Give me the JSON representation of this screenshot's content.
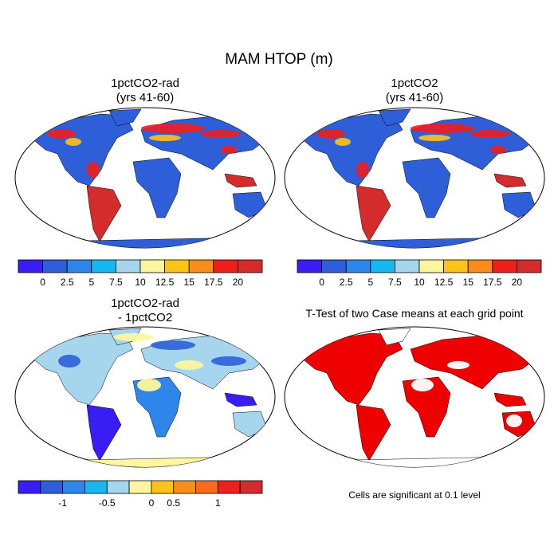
{
  "figure": {
    "title": "MAM HTOP (m)"
  },
  "panels": {
    "p1": {
      "title_line1": "1pctCO2-rad",
      "title_line2": "(yrs 41-60)"
    },
    "p2": {
      "title_line1": "1pctCO2",
      "title_line2": "(yrs 41-60)"
    },
    "p3": {
      "title_line1": "1pctCO2-rad",
      "title_line2": "- 1pctCO2"
    },
    "p4": {
      "title_line1": "T-Test of two Case means at each grid point",
      "note": "Cells are significant at 0.1 level"
    }
  },
  "colorbars": {
    "abs": {
      "labels": [
        "0",
        "2.5",
        "5",
        "7.5",
        "10",
        "12.5",
        "15",
        "17.5",
        "20"
      ],
      "colors": [
        "#3a1cf5",
        "#2f5fd8",
        "#2f86ea",
        "#17b7f0",
        "#a6d5ee",
        "#fdf6a0",
        "#fdc319",
        "#f98c1a",
        "#ef1f1c",
        "#d42c2c"
      ]
    },
    "diff": {
      "labels": [
        "-1",
        "-0.5",
        "0",
        "0.5",
        "1"
      ],
      "colors": [
        "#3a1cf5",
        "#2f5fd8",
        "#2f86ea",
        "#17b7f0",
        "#a6d5ee",
        "#fdf6a0",
        "#fdc319",
        "#f98c1a",
        "#f96a1a",
        "#ef1f1c",
        "#d42c2c"
      ]
    }
  },
  "colors": {
    "ocean": "#ffffff",
    "land_abs": "#2f5fd8",
    "land_diff": "#a6d5ee",
    "signif": "#ee0000",
    "coast": "#000000"
  }
}
